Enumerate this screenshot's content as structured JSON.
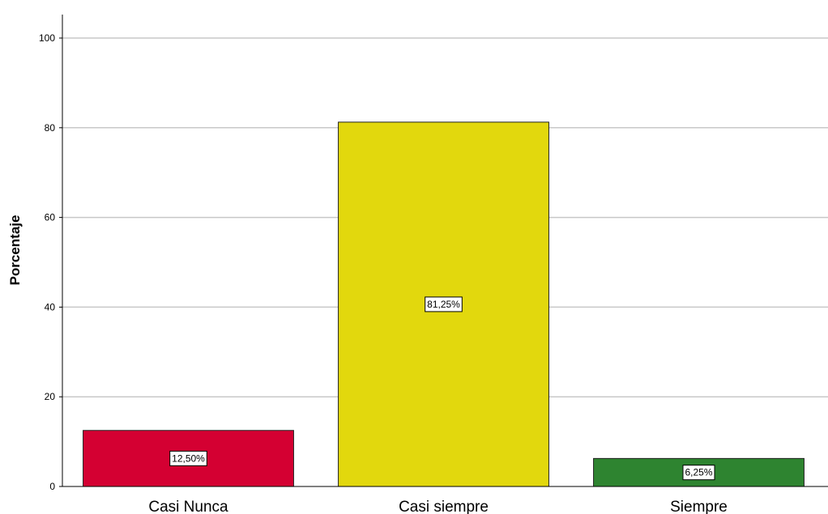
{
  "chart_data": {
    "type": "bar",
    "categories": [
      "Casi Nunca",
      "Casi siempre",
      "Siempre"
    ],
    "values": [
      12.5,
      81.25,
      6.25
    ],
    "data_labels": [
      "12,50%",
      "81,25%",
      "6,25%"
    ],
    "bar_colors": [
      "#d40032",
      "#e2d80d",
      "#2e8430"
    ],
    "title": "",
    "xlabel": "",
    "ylabel": "Porcentaje",
    "ylim": [
      0,
      100
    ],
    "yticks": [
      0,
      20,
      40,
      60,
      80,
      100
    ],
    "ytick_labels": [
      "0",
      "20",
      "40",
      "60",
      "80",
      "100"
    ],
    "grid": "horizontal",
    "legend": "none"
  }
}
